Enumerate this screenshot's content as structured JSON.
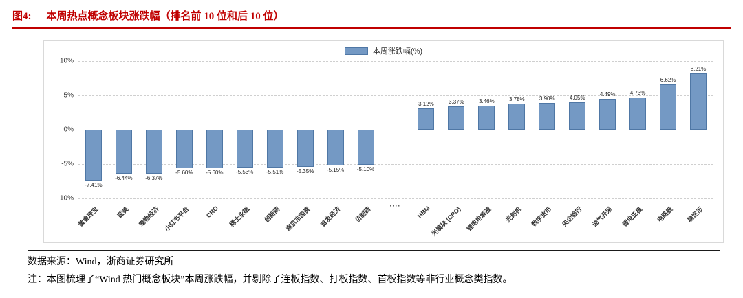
{
  "header": {
    "figure_label": "图4:",
    "title": "本周热点概念板块涨跌幅（排名前 10 位和后 10 位）"
  },
  "chart_data": {
    "type": "bar",
    "legend": "本周涨跌幅(%)",
    "ylim": [
      -10,
      10
    ],
    "yticks": [
      10,
      5,
      0,
      -5,
      -10
    ],
    "grid": true,
    "legend_position": "top-center",
    "bar_color": "#7499c4",
    "bar_border_color": "#4f77a5",
    "categories": [
      "黄金珠宝",
      "医美",
      "宠物经济",
      "小红书平台",
      "CRO",
      "稀土永磁",
      "创新药",
      "南京市国资",
      "首发经济",
      "仿制药",
      "····",
      "HBM",
      "光模块 (CPO)",
      "锂电电解液",
      "光刻机",
      "数字货币",
      "央企银行",
      "油气开采",
      "锂电正极",
      "电路板",
      "稳定币"
    ],
    "values": [
      -7.41,
      -6.44,
      -6.37,
      -5.6,
      -5.6,
      -5.53,
      -5.51,
      -5.35,
      -5.15,
      -5.1,
      null,
      3.12,
      3.37,
      3.46,
      3.78,
      3.9,
      4.05,
      4.49,
      4.73,
      6.62,
      8.21
    ]
  },
  "footer": {
    "source": "数据来源：Wind，浙商证券研究所",
    "note": "注：本图梳理了“Wind 热门概念板块”本周涨跌幅，并剔除了连板指数、打板指数、首板指数等非行业概念类指数。"
  }
}
